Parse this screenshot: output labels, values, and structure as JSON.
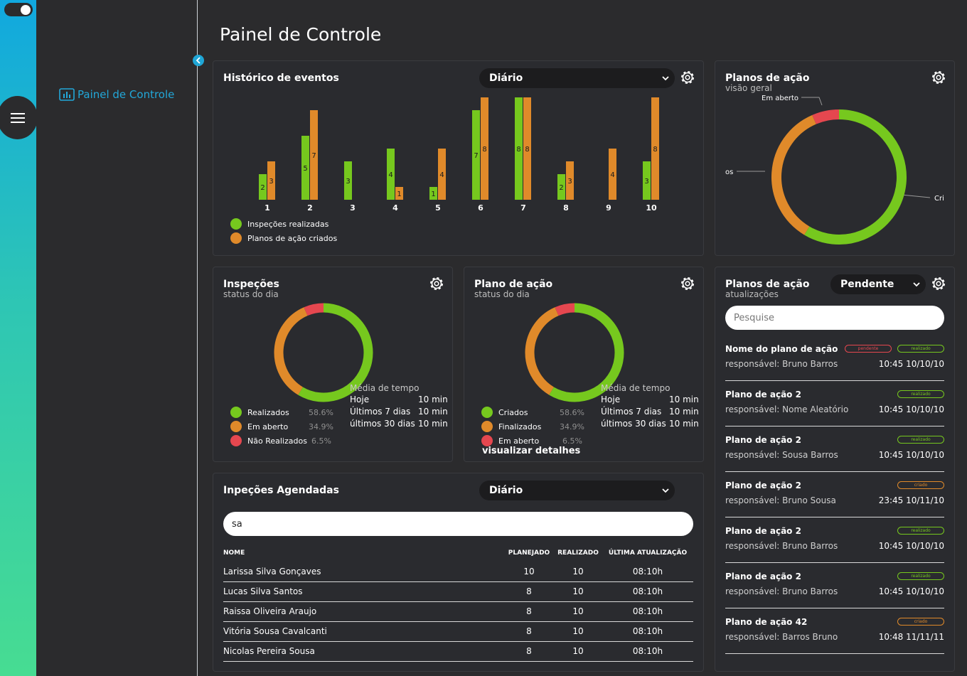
{
  "page": {
    "title": "Painel de Controle"
  },
  "sidebar": {
    "link_label": "Painel de Controle"
  },
  "colors": {
    "green": "#76c81e",
    "orange": "#e08a2a",
    "red": "#e5474f",
    "accent": "#22a7d8"
  },
  "events_card": {
    "title": "Histórico de eventos",
    "period": "Diário",
    "legend": [
      "Inspeções realizadas",
      "Planos de ação criados"
    ]
  },
  "chart_data": [
    {
      "type": "bar",
      "title": "Histórico de eventos",
      "categories": [
        "1",
        "2",
        "3",
        "4",
        "5",
        "6",
        "7",
        "8",
        "9",
        "10"
      ],
      "series": [
        {
          "name": "Inspeções realizadas",
          "values": [
            2,
            5,
            3,
            4,
            1,
            7,
            8,
            2,
            0,
            3
          ]
        },
        {
          "name": "Planos de ação criados",
          "values": [
            3,
            7,
            0,
            1,
            4,
            8,
            8,
            3,
            4,
            8
          ]
        }
      ],
      "ylim": [
        0,
        8
      ]
    },
    {
      "type": "pie",
      "title": "Planos de ação - visão geral",
      "labels": [
        "Cri",
        "os",
        "Em aberto"
      ],
      "values": [
        58.6,
        34.9,
        6.5
      ]
    },
    {
      "type": "pie",
      "title": "Inspeções - status do dia",
      "labels": [
        "Realizados",
        "Em aberto",
        "Não Realizados"
      ],
      "values": [
        58.6,
        34.9,
        6.5
      ]
    },
    {
      "type": "pie",
      "title": "Plano de ação - status do dia",
      "labels": [
        "Criados",
        "Finalizados",
        "Em aberto"
      ],
      "values": [
        58.6,
        34.9,
        6.5
      ]
    }
  ],
  "overview_card": {
    "title": "Planos de ação",
    "subtitle": "visão geral",
    "callouts": {
      "open": "Em aberto",
      "done": "os",
      "created": "Cri"
    }
  },
  "inspections_card": {
    "title": "Inspeções",
    "subtitle": "status do dia",
    "legend": [
      {
        "label": "Realizados",
        "pct": "58.6%"
      },
      {
        "label": "Em aberto",
        "pct": "34.9%"
      },
      {
        "label": "Não Realizados",
        "pct": "6.5%"
      }
    ],
    "time": {
      "header": "Média de tempo",
      "rows": [
        {
          "label": "Hoje",
          "value": "10 min"
        },
        {
          "label": "Últimos 7 dias",
          "value": "10 min"
        },
        {
          "label": "últimos 30 dias",
          "value": "10 min"
        }
      ]
    }
  },
  "plan_card": {
    "title": "Plano de ação",
    "subtitle": "status do dia",
    "legend": [
      {
        "label": "Criados",
        "pct": "58.6%"
      },
      {
        "label": "Finalizados",
        "pct": "34.9%"
      },
      {
        "label": "Em aberto",
        "pct": "6.5%"
      }
    ],
    "time": {
      "header": "Média de tempo",
      "rows": [
        {
          "label": "Hoje",
          "value": "10 min"
        },
        {
          "label": "Últimos 7 dias",
          "value": "10 min"
        },
        {
          "label": "últimos 30 dias",
          "value": "10 min"
        }
      ]
    },
    "details_link": "visualizar detalhes"
  },
  "scheduled_card": {
    "title": "Inpeções Agendadas",
    "period": "Diário",
    "search_value": "sa",
    "columns": [
      "NOME",
      "PLANEJADO",
      "REALIZADO",
      "ÚLTIMA ATUALIZAÇÃO"
    ],
    "rows": [
      [
        "Larissa Silva Gonçaves",
        "10",
        "10",
        "08:10h"
      ],
      [
        "Lucas Silva Santos",
        "8",
        "10",
        "08:10h"
      ],
      [
        "Raissa Oliveira Araujo",
        "8",
        "10",
        "08:10h"
      ],
      [
        "Vitória Sousa Cavalcanti",
        "8",
        "10",
        "08:10h"
      ],
      [
        "Nicolas Pereira Sousa",
        "8",
        "10",
        "08:10h"
      ]
    ]
  },
  "updates_card": {
    "title": "Planos de ação",
    "subtitle": "atualizações",
    "filter": "Pendente",
    "search_placeholder": "Pesquise",
    "items": [
      {
        "name": "Nome do plano de ação",
        "resp": "responsável: Bruno Barros",
        "time": "10:45 10/10/10",
        "badges": [
          {
            "t": "pendente",
            "c": "red"
          },
          {
            "t": "realizado",
            "c": "green"
          }
        ]
      },
      {
        "name": "Plano de ação 2",
        "resp": "responsável: Nome Aleatório",
        "time": "10:45 10/10/10",
        "badges": [
          {
            "t": "realizado",
            "c": "green"
          }
        ]
      },
      {
        "name": "Plano de ação 2",
        "resp": "responsável: Sousa Barros",
        "time": "10:45 10/10/10",
        "badges": [
          {
            "t": "realizado",
            "c": "green"
          }
        ]
      },
      {
        "name": "Plano de ação 2",
        "resp": "responsável: Bruno Sousa",
        "time": "23:45 10/11/10",
        "badges": [
          {
            "t": "criado",
            "c": "orange"
          }
        ]
      },
      {
        "name": "Plano de ação 2",
        "resp": "responsável: Bruno Barros",
        "time": "10:45 10/10/10",
        "badges": [
          {
            "t": "realizado",
            "c": "green"
          }
        ]
      },
      {
        "name": "Plano de ação 2",
        "resp": "responsável: Bruno Barros",
        "time": "10:45 10/10/10",
        "badges": [
          {
            "t": "realizado",
            "c": "green"
          }
        ]
      },
      {
        "name": "Plano de ação 42",
        "resp": "responsável: Barros Bruno",
        "time": "10:48 11/11/11",
        "badges": [
          {
            "t": "criado",
            "c": "orange"
          }
        ]
      }
    ]
  }
}
